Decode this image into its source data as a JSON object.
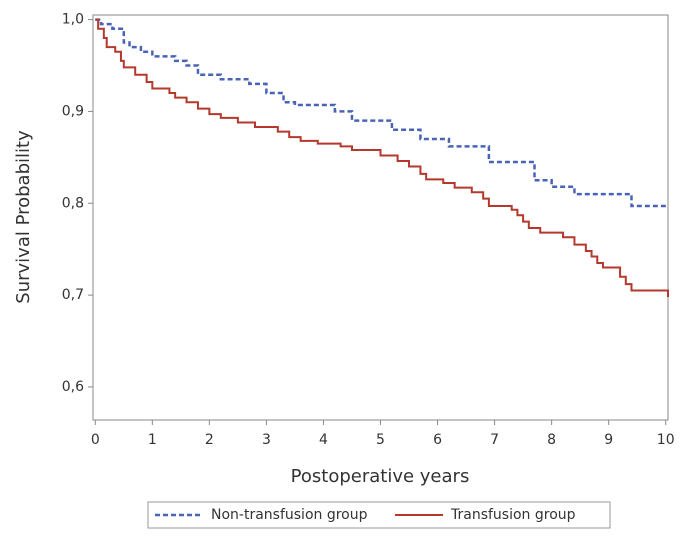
{
  "chart_data": {
    "type": "step",
    "x_label": "Postoperative years",
    "y_label": "Survival Probability",
    "xlim": [
      -0.04,
      10.04
    ],
    "ylim": [
      0.564,
      1.005
    ],
    "xticks": [
      0,
      1,
      2,
      3,
      4,
      5,
      6,
      7,
      8,
      9,
      10
    ],
    "yticks": [
      {
        "value": 0.6,
        "label": "0,6"
      },
      {
        "value": 0.7,
        "label": "0,7"
      },
      {
        "value": 0.8,
        "label": "0,8"
      },
      {
        "value": 0.9,
        "label": "0,9"
      },
      {
        "value": 1.0,
        "label": "1,0"
      }
    ],
    "series": [
      {
        "name": "Non-transfusion group",
        "color": "#4a63b5",
        "dash": true,
        "x": [
          0,
          0.1,
          0.3,
          0.5,
          0.6,
          0.8,
          1.0,
          1.4,
          1.6,
          1.8,
          2.2,
          2.7,
          3.0,
          3.3,
          3.5,
          4.2,
          4.5,
          5.2,
          5.7,
          6.2,
          6.9,
          7.7,
          8.0,
          8.4,
          9.4,
          10.04
        ],
        "values": [
          1.0,
          0.995,
          0.99,
          0.975,
          0.97,
          0.965,
          0.96,
          0.955,
          0.95,
          0.94,
          0.935,
          0.93,
          0.92,
          0.91,
          0.907,
          0.9,
          0.89,
          0.88,
          0.87,
          0.862,
          0.845,
          0.825,
          0.818,
          0.81,
          0.797,
          0.797
        ]
      },
      {
        "name": "Transfusion group",
        "color": "#b4382c",
        "dash": false,
        "x": [
          0,
          0.05,
          0.15,
          0.2,
          0.35,
          0.45,
          0.5,
          0.7,
          0.9,
          1.0,
          1.3,
          1.4,
          1.6,
          1.8,
          2.0,
          2.2,
          2.5,
          2.8,
          3.2,
          3.4,
          3.6,
          3.9,
          4.3,
          4.5,
          5.0,
          5.3,
          5.5,
          5.7,
          5.8,
          6.1,
          6.3,
          6.6,
          6.8,
          6.9,
          7.3,
          7.4,
          7.5,
          7.6,
          7.8,
          8.2,
          8.4,
          8.6,
          8.7,
          8.8,
          8.9,
          9.2,
          9.3,
          9.4,
          9.99,
          10.04
        ],
        "values": [
          1.0,
          0.99,
          0.98,
          0.97,
          0.965,
          0.955,
          0.948,
          0.94,
          0.932,
          0.925,
          0.92,
          0.915,
          0.91,
          0.903,
          0.897,
          0.893,
          0.888,
          0.883,
          0.878,
          0.872,
          0.868,
          0.865,
          0.862,
          0.858,
          0.852,
          0.846,
          0.84,
          0.832,
          0.826,
          0.822,
          0.817,
          0.812,
          0.805,
          0.797,
          0.793,
          0.787,
          0.78,
          0.773,
          0.768,
          0.763,
          0.755,
          0.748,
          0.742,
          0.735,
          0.73,
          0.72,
          0.712,
          0.705,
          0.705,
          0.698
        ]
      }
    ]
  }
}
